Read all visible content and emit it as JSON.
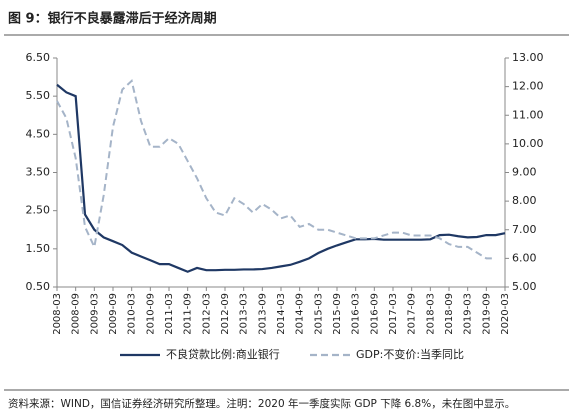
{
  "chart_data": {
    "type": "line",
    "title": "图 9：银行不良暴露滞后于经济周期",
    "source": "资料来源：WIND，国信证券经济研究所整理。注明：2020 年一季度实际 GDP 下降 6.8%，未在图中显示。",
    "categories": [
      "2008-03",
      null,
      "2008-09",
      null,
      "2009-03",
      null,
      "2009-09",
      null,
      "2010-03",
      null,
      "2010-09",
      null,
      "2011-03",
      null,
      "2011-09",
      null,
      "2012-03",
      null,
      "2012-09",
      null,
      "2013-03",
      null,
      "2013-09",
      null,
      "2014-03",
      null,
      "2014-09",
      null,
      "2015-03",
      null,
      "2015-09",
      null,
      "2016-03",
      null,
      "2016-09",
      null,
      "2017-03",
      null,
      "2017-09",
      null,
      "2018-03",
      null,
      "2018-09",
      null,
      "2019-03",
      null,
      "2019-09",
      null,
      "2020-03"
    ],
    "series": [
      {
        "name": "不良贷款比例:商业银行",
        "color": "#1f3864",
        "axis": "y",
        "values": [
          5.8,
          5.6,
          5.5,
          2.4,
          2.0,
          1.8,
          1.7,
          1.6,
          1.4,
          1.3,
          1.2,
          1.1,
          1.1,
          1.0,
          0.9,
          1.0,
          0.94,
          0.94,
          0.95,
          0.95,
          0.96,
          0.96,
          0.97,
          1.0,
          1.04,
          1.08,
          1.16,
          1.25,
          1.39,
          1.5,
          1.59,
          1.67,
          1.75,
          1.75,
          1.76,
          1.74,
          1.74,
          1.74,
          1.74,
          1.74,
          1.75,
          1.86,
          1.87,
          1.83,
          1.8,
          1.81,
          1.86,
          1.86,
          1.91
        ]
      },
      {
        "name": "GDP:不变价:当季同比",
        "color": "#a5b4c8",
        "axis": "y2",
        "values": [
          11.5,
          10.9,
          9.5,
          7.1,
          6.4,
          8.2,
          10.6,
          11.9,
          12.2,
          10.8,
          9.9,
          9.9,
          10.2,
          10.0,
          9.4,
          8.8,
          8.1,
          7.6,
          7.5,
          8.1,
          7.9,
          7.6,
          7.9,
          7.7,
          7.4,
          7.5,
          7.1,
          7.2,
          7.0,
          7.0,
          6.9,
          6.8,
          6.7,
          6.7,
          6.7,
          6.8,
          6.9,
          6.9,
          6.8,
          6.8,
          6.8,
          6.7,
          6.5,
          6.4,
          6.4,
          6.2,
          6.0,
          6.0,
          null
        ]
      }
    ],
    "ylim": [
      0.5,
      6.5
    ],
    "yticks": [
      {
        "value": 0.5,
        "label": "0.50"
      },
      {
        "value": 1.5,
        "label": "1.50"
      },
      {
        "value": 2.5,
        "label": "2.50"
      },
      {
        "value": 3.5,
        "label": "3.50"
      },
      {
        "value": 4.5,
        "label": "4.50"
      },
      {
        "value": 5.5,
        "label": "5.50"
      },
      {
        "value": 6.5,
        "label": "6.50"
      }
    ],
    "y2lim": [
      5,
      13
    ],
    "y2ticks": [
      {
        "value": 5,
        "label": "5.00"
      },
      {
        "value": 6,
        "label": "6.00"
      },
      {
        "value": 7,
        "label": "7.00"
      },
      {
        "value": 8,
        "label": "8.00"
      },
      {
        "value": 9,
        "label": "9.00"
      },
      {
        "value": 10,
        "label": "10.00"
      },
      {
        "value": 11,
        "label": "11.00"
      },
      {
        "value": 12,
        "label": "12.00"
      },
      {
        "value": 13,
        "label": "13.00"
      }
    ]
  }
}
